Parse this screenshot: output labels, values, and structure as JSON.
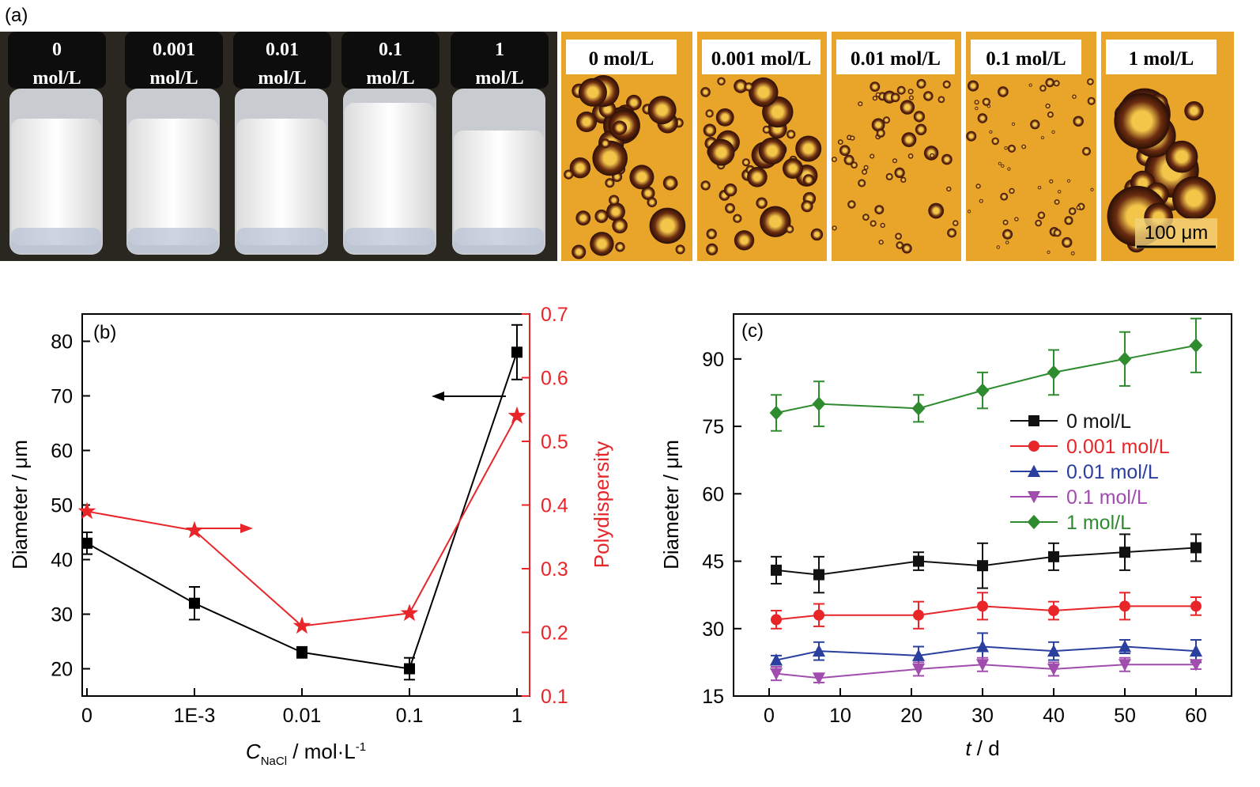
{
  "panel_a": {
    "label": "(a)",
    "vials": [
      {
        "line1": "0",
        "line2": "mol/L"
      },
      {
        "line1": "0.001",
        "line2": "mol/L"
      },
      {
        "line1": "0.01",
        "line2": "mol/L"
      },
      {
        "line1": "0.1",
        "line2": "mol/L"
      },
      {
        "line1": "1",
        "line2": "mol/L"
      }
    ],
    "micrographs": [
      "0 mol/L",
      "0.001 mol/L",
      "0.01 mol/L",
      "0.1 mol/L",
      "1 mol/L"
    ],
    "scale_bar": "100 μm"
  },
  "chart_data": [
    {
      "type": "line",
      "panel_label": "(b)",
      "categories": [
        "0",
        "1E-3",
        "0.01",
        "0.1",
        "1"
      ],
      "xlabel": {
        "main": "C",
        "sub": "NaCl",
        "rest": " / mol·L",
        "sup": "-1"
      },
      "ylabel_left": "Diameter / μm",
      "ylabel_right": "Polydispersity",
      "ylim_left": [
        15,
        85
      ],
      "ylim_right": [
        0.1,
        0.7
      ],
      "yticks_left": [
        20,
        30,
        40,
        50,
        60,
        70,
        80
      ],
      "yticks_right": [
        0.1,
        0.2,
        0.3,
        0.4,
        0.5,
        0.6,
        0.7
      ],
      "series": [
        {
          "axis": "left",
          "color": "#000000",
          "marker": "square",
          "values": [
            43,
            32,
            23,
            20,
            78
          ],
          "errors": [
            2,
            3,
            1,
            2,
            5
          ]
        },
        {
          "axis": "right",
          "color": "#e8262a",
          "marker": "star",
          "values": [
            0.39,
            0.36,
            0.21,
            0.23,
            0.54
          ]
        }
      ]
    },
    {
      "type": "line",
      "panel_label": "(c)",
      "x": [
        1,
        7,
        21,
        30,
        40,
        50,
        60
      ],
      "xlabel": {
        "main": "t",
        "rest": " / d"
      },
      "ylabel": "Diameter / μm",
      "xlim": [
        -5,
        65
      ],
      "ylim": [
        15,
        100
      ],
      "xticks": [
        0,
        10,
        20,
        30,
        40,
        50,
        60
      ],
      "yticks": [
        15,
        30,
        45,
        60,
        75,
        90
      ],
      "legend_position": "right",
      "series": [
        {
          "name": "0 mol/L",
          "color": "#111111",
          "marker": "square",
          "values": [
            43,
            42,
            45,
            44,
            46,
            47,
            48
          ],
          "errors": [
            3,
            4,
            2,
            5,
            3,
            4,
            3
          ]
        },
        {
          "name": "0.001 mol/L",
          "color": "#e8262a",
          "marker": "circle",
          "values": [
            32,
            33,
            33,
            35,
            34,
            35,
            35
          ],
          "errors": [
            2,
            2.5,
            3,
            3,
            2,
            3,
            2
          ]
        },
        {
          "name": "0.01 mol/L",
          "color": "#2b3f9e",
          "marker": "triangle-up",
          "values": [
            23,
            25,
            24,
            26,
            25,
            26,
            25
          ],
          "errors": [
            1,
            2,
            2,
            3,
            2,
            1.5,
            2.5
          ]
        },
        {
          "name": "0.1 mol/L",
          "color": "#a04dae",
          "marker": "triangle-down",
          "values": [
            20,
            19,
            21,
            22,
            21,
            22,
            22
          ],
          "errors": [
            1.5,
            1,
            1.5,
            1.5,
            1.5,
            1.5,
            1
          ]
        },
        {
          "name": "1 mol/L",
          "color": "#2e8b2e",
          "marker": "diamond",
          "values": [
            78,
            80,
            79,
            83,
            87,
            90,
            93
          ],
          "errors": [
            4,
            5,
            3,
            4,
            5,
            6,
            6
          ]
        }
      ]
    }
  ],
  "colors": {
    "axis_right": "#e8262a",
    "photo_bg": "#2a2620",
    "micro_bg": "#e9a52a"
  }
}
